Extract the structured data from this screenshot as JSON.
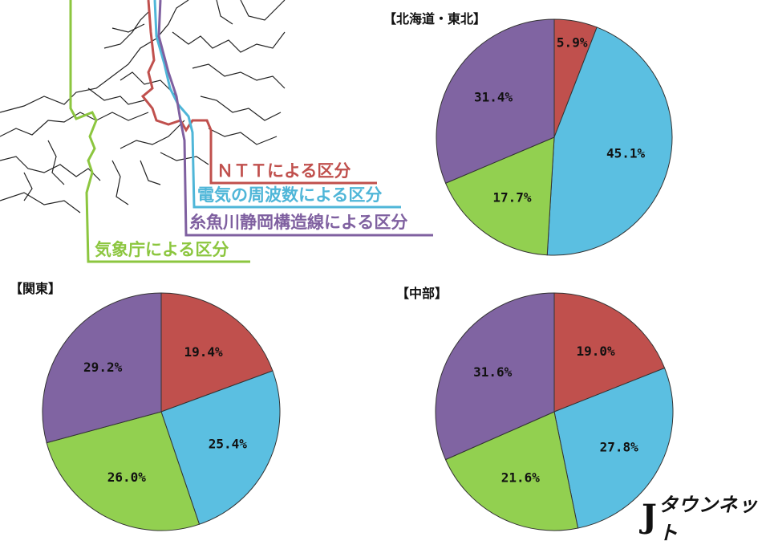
{
  "map": {
    "legend": [
      {
        "label": "ＮＴＴによる区分",
        "color": "#c0504d"
      },
      {
        "label": "電気の周波数による区分",
        "color": "#4fb6d8"
      },
      {
        "label": "糸魚川静岡構造線による区分",
        "color": "#7f60a0"
      },
      {
        "label": "気象庁による区分",
        "color": "#8cc63f"
      }
    ]
  },
  "colors": {
    "ntt": "#c0504d",
    "frequency": "#5bbfe1",
    "tectonic": "#8064a2",
    "jma": "#92d050"
  },
  "chart_data": [
    {
      "type": "pie",
      "title": "【北海道・東北】",
      "categories": [
        "ＮＴＴによる区分",
        "電気の周波数による区分",
        "気象庁による区分",
        "糸魚川静岡構造線による区分"
      ],
      "values": [
        5.9,
        45.1,
        17.7,
        31.4
      ],
      "labels": [
        "5.9%",
        "45.1%",
        "17.7%",
        "31.4%"
      ],
      "colors": [
        "#c0504d",
        "#5bbfe1",
        "#92d050",
        "#8064a2"
      ]
    },
    {
      "type": "pie",
      "title": "【関東】",
      "categories": [
        "ＮＴＴによる区分",
        "電気の周波数による区分",
        "気象庁による区分",
        "糸魚川静岡構造線による区分"
      ],
      "values": [
        19.4,
        25.4,
        26.0,
        29.2
      ],
      "labels": [
        "19.4%",
        "25.4%",
        "26.0%",
        "29.2%"
      ],
      "colors": [
        "#c0504d",
        "#5bbfe1",
        "#92d050",
        "#8064a2"
      ]
    },
    {
      "type": "pie",
      "title": "【中部】",
      "categories": [
        "ＮＴＴによる区分",
        "電気の周波数による区分",
        "気象庁による区分",
        "糸魚川静岡構造線による区分"
      ],
      "values": [
        19.0,
        27.8,
        21.6,
        31.6
      ],
      "labels": [
        "19.0%",
        "27.8%",
        "21.6%",
        "31.6%"
      ],
      "colors": [
        "#c0504d",
        "#5bbfe1",
        "#92d050",
        "#8064a2"
      ]
    }
  ],
  "logo": {
    "mark": "J",
    "text": "タウンネット"
  }
}
